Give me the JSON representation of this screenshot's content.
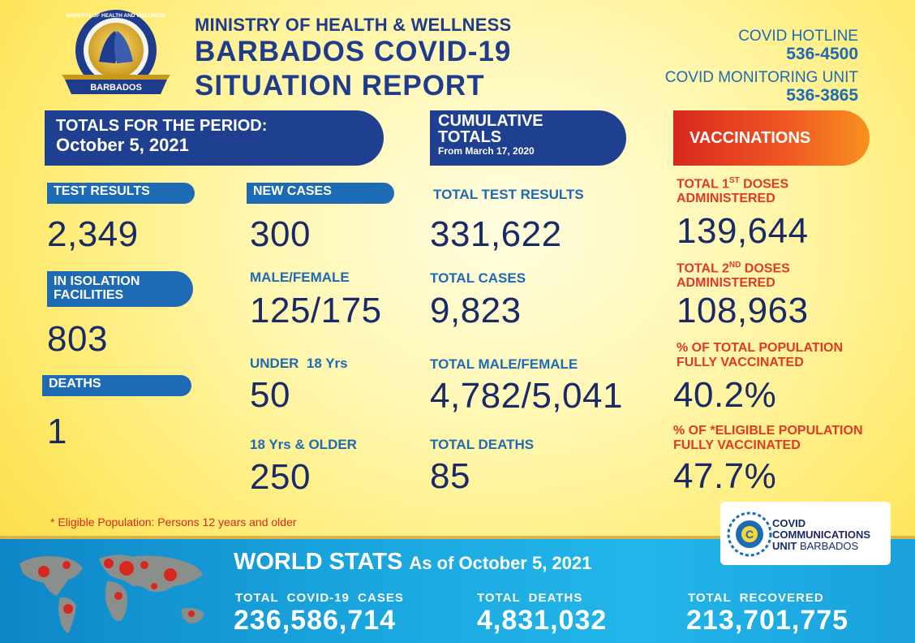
{
  "header": {
    "seal_text_top": "MINISTRY OF HEALTH AND WELLNESS",
    "seal_text_bottom": "BARBADOS",
    "ministry": "MINISTRY OF HEALTH & WELLNESS",
    "title_line1": "BARBADOS COVID-19",
    "title_line2": "SITUATION REPORT",
    "hotline_label": "COVID HOTLINE",
    "hotline_number": "536-4500",
    "monitoring_label": "COVID MONITORING UNIT",
    "monitoring_number": "536-3865"
  },
  "period": {
    "heading": "TOTALS FOR THE PERIOD:",
    "date": "October 5, 2021",
    "test_results_label": "TEST RESULTS",
    "test_results": "2,349",
    "isolation_label": "IN ISOLATION FACILITIES",
    "isolation": "803",
    "deaths_label": "DEATHS",
    "deaths": "1",
    "new_cases_label": "NEW CASES",
    "new_cases": "300",
    "male_female_label": "MALE/FEMALE",
    "male_female": "125/175",
    "under18_label": "UNDER  18 Yrs",
    "under18": "50",
    "over18_label": "18 Yrs & OLDER",
    "over18": "250"
  },
  "cumulative": {
    "heading": "CUMULATIVE TOTALS",
    "since": "From March 17, 2020",
    "total_tests_label": "TOTAL TEST RESULTS",
    "total_tests": "331,622",
    "total_cases_label": "TOTAL CASES",
    "total_cases": "9,823",
    "total_mf_label": "TOTAL MALE/FEMALE",
    "total_mf": "4,782/5,041",
    "total_deaths_label": "TOTAL DEATHS",
    "total_deaths": "85"
  },
  "vaccinations": {
    "heading": "VACCINATIONS",
    "first_label_a": "TOTAL 1",
    "first_label_sup": "ST",
    "first_label_b": " DOSES",
    "first_label_c": "ADMINISTERED",
    "first": "139,644",
    "second_label_a": "TOTAL 2",
    "second_label_sup": "ND",
    "second_label_b": " DOSES",
    "second_label_c": "ADMINISTERED",
    "second": "108,963",
    "pop_label_1": "% OF TOTAL POPULATION",
    "pop_label_2": "FULLY VACCINATED",
    "pop": "40.2%",
    "elig_label_1": "% OF *ELIGIBLE POPULATION",
    "elig_label_2": "FULLY VACCINATED",
    "elig": "47.7%"
  },
  "footnote": "* Eligible Population: Persons 12 years and older",
  "ccu": {
    "line1": "COVID",
    "line2": "COMMUNICATIONS",
    "line3a": "UNIT",
    "line3b": " BARBADOS"
  },
  "world": {
    "title": "WORLD STATS",
    "subtitle": "As of October 5, 2021",
    "cases_label": "TOTAL  COVID-19  CASES",
    "cases": "236,586,714",
    "deaths_label": "TOTAL  DEATHS",
    "deaths": "4,831,032",
    "recovered_label": "TOTAL  RECOVERED",
    "recovered": "213,701,775"
  },
  "colors": {
    "navy": "#1f3f91",
    "blue": "#1d6bb5",
    "red": "#e03a26",
    "footer_blue": "#1aa6df"
  }
}
